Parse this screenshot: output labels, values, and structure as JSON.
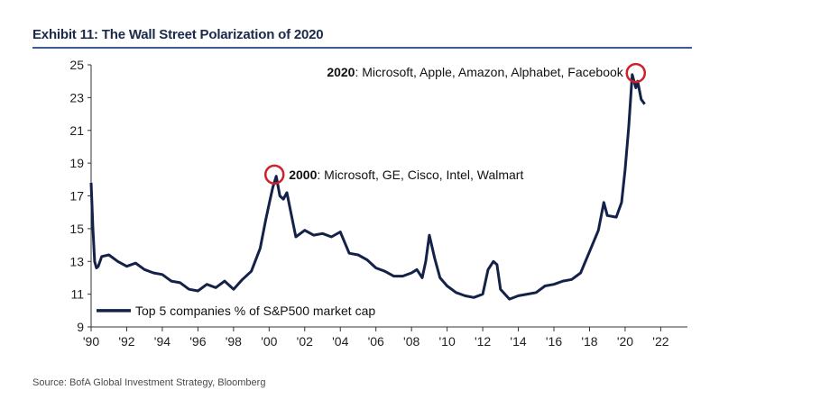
{
  "header": {
    "title": "Exhibit 11: The Wall Street Polarization of 2020"
  },
  "footer": {
    "source": "Source: BofA Global Investment Strategy, Bloomberg"
  },
  "colors": {
    "line": "#14224a",
    "circle": "#d0202a",
    "rule": "#3b5d8f"
  },
  "chart_data": {
    "type": "line",
    "title": "Exhibit 11: The Wall Street Polarization of 2020",
    "xlabel": "",
    "ylabel": "",
    "xlim": [
      1990,
      2023.5
    ],
    "ylim": [
      9,
      25
    ],
    "grid": false,
    "legend_position": "bottom-left",
    "x_ticks": [
      "'90",
      "'92",
      "'94",
      "'96",
      "'98",
      "'00",
      "'02",
      "'04",
      "'06",
      "'08",
      "'10",
      "'12",
      "'14",
      "'16",
      "'18",
      "'20",
      "'22"
    ],
    "y_ticks": [
      "9",
      "11",
      "13",
      "15",
      "17",
      "19",
      "21",
      "23",
      "25"
    ],
    "series": [
      {
        "name": "Top 5 companies % of S&P500 market cap",
        "x": [
          1990.0,
          1990.1,
          1990.2,
          1990.3,
          1990.4,
          1990.6,
          1991.0,
          1991.5,
          1992.0,
          1992.5,
          1993.0,
          1993.5,
          1994.0,
          1994.5,
          1995.0,
          1995.5,
          1996.0,
          1996.5,
          1997.0,
          1997.5,
          1998.0,
          1998.5,
          1999.0,
          1999.5,
          1999.8,
          2000.0,
          2000.2,
          2000.4,
          2000.6,
          2000.8,
          2001.0,
          2001.5,
          2002.0,
          2002.5,
          2003.0,
          2003.5,
          2004.0,
          2004.5,
          2005.0,
          2005.5,
          2006.0,
          2006.5,
          2007.0,
          2007.5,
          2008.0,
          2008.3,
          2008.6,
          2008.8,
          2009.0,
          2009.3,
          2009.6,
          2010.0,
          2010.5,
          2011.0,
          2011.5,
          2012.0,
          2012.3,
          2012.6,
          2012.8,
          2013.0,
          2013.5,
          2014.0,
          2014.5,
          2015.0,
          2015.5,
          2016.0,
          2016.5,
          2017.0,
          2017.5,
          2018.0,
          2018.5,
          2018.8,
          2019.0,
          2019.5,
          2019.8,
          2020.0,
          2020.2,
          2020.4,
          2020.6,
          2020.7,
          2020.9,
          2021.1
        ],
        "y": [
          17.8,
          15.0,
          13.0,
          12.6,
          12.7,
          13.3,
          13.4,
          13.0,
          12.7,
          12.9,
          12.5,
          12.3,
          12.2,
          11.8,
          11.7,
          11.3,
          11.2,
          11.6,
          11.4,
          11.8,
          11.3,
          11.9,
          12.4,
          13.8,
          15.5,
          16.5,
          17.5,
          18.2,
          17.0,
          16.8,
          17.2,
          14.5,
          14.9,
          14.6,
          14.7,
          14.5,
          14.8,
          13.5,
          13.4,
          13.1,
          12.6,
          12.4,
          12.1,
          12.1,
          12.3,
          12.5,
          12.0,
          13.0,
          14.6,
          13.2,
          12.0,
          11.5,
          11.1,
          10.9,
          10.8,
          11.0,
          12.5,
          13.0,
          12.8,
          11.3,
          10.7,
          10.9,
          11.0,
          11.1,
          11.5,
          11.6,
          11.8,
          11.9,
          12.3,
          13.6,
          14.9,
          16.6,
          15.8,
          15.7,
          16.6,
          18.6,
          21.2,
          24.4,
          23.6,
          24.0,
          22.9,
          22.6
        ]
      }
    ],
    "annotations": [
      {
        "year": "2000",
        "text": ": Microsoft, GE, Cisco, Intel, Walmart",
        "x": 2000.3,
        "y": 18.3
      },
      {
        "year": "2020",
        "text": ": Microsoft, Apple, Amazon, Alphabet, Facebook",
        "x": 2020.6,
        "y": 24.5
      }
    ]
  }
}
